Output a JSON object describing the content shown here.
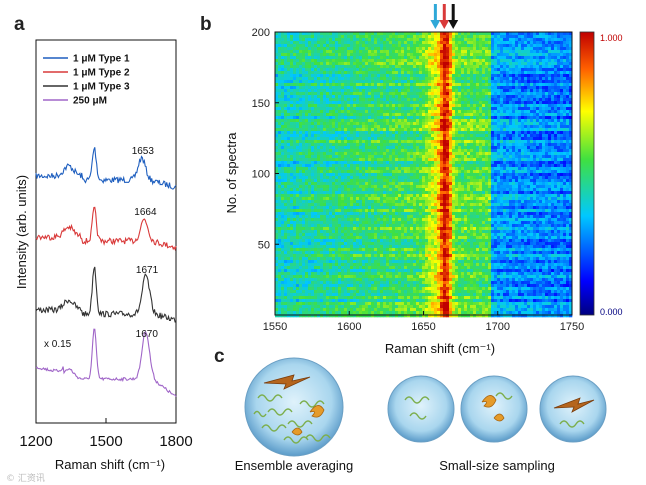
{
  "panels": {
    "a": "a",
    "b": "b",
    "c": "c"
  },
  "chart_data": [
    {
      "type": "line",
      "panel": "a",
      "xlabel": "Raman shift (cm⁻¹)",
      "ylabel": "Intensity (arb. units)",
      "xlim": [
        1200,
        1800
      ],
      "xticks": [
        "1200",
        "1500",
        "1800"
      ],
      "legend": "top",
      "series": [
        {
          "name": "1 μM Type 1",
          "color": "#1f5fbf",
          "peak_label": "1653",
          "peak_x": 1653
        },
        {
          "name": "1 μM Type 2",
          "color": "#d93a3a",
          "peak_label": "1664",
          "peak_x": 1664
        },
        {
          "name": "1 μM Type 3",
          "color": "#333333",
          "peak_label": "1671",
          "peak_x": 1671
        },
        {
          "name": "250 μM",
          "color": "#a066c8",
          "peak_label": "1670",
          "peak_x": 1670,
          "scale_label": "x 0.15"
        }
      ]
    },
    {
      "type": "heatmap",
      "panel": "b",
      "xlabel": "Raman shift (cm⁻¹)",
      "ylabel": "No. of spectra",
      "xlim": [
        1550,
        1750
      ],
      "ylim": [
        0,
        200
      ],
      "xticks": [
        "1550",
        "1600",
        "1650",
        "1700",
        "1750"
      ],
      "yticks": [
        "50",
        "100",
        "150",
        "200"
      ],
      "colorbar": {
        "max_label": "1.000",
        "min_label": "0.000"
      },
      "band_center": 1665,
      "arrows": [
        {
          "x": 1658,
          "color": "#2fa8d8"
        },
        {
          "x": 1664,
          "color": "#d93a3a"
        },
        {
          "x": 1670,
          "color": "#111111"
        }
      ]
    }
  ],
  "panel_c": {
    "ensemble_label": "Ensemble averaging",
    "small_label": "Small-size sampling"
  },
  "watermark": "© 汇资讯"
}
